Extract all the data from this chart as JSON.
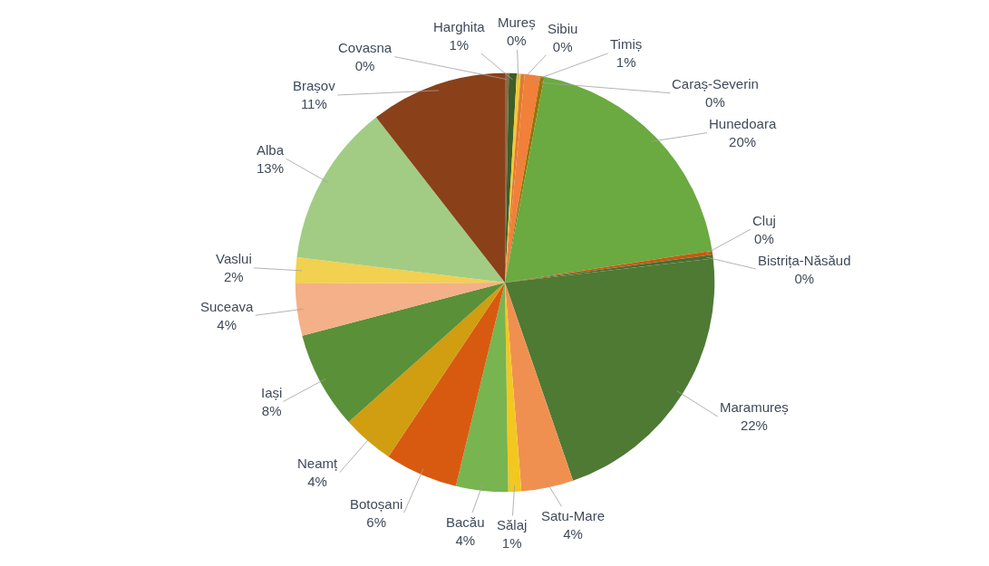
{
  "chart_data": {
    "type": "pie",
    "categories": [
      "Covasna",
      "Harghita",
      "Mureș",
      "Sibiu",
      "Timiș",
      "Caraș-Severin",
      "Hunedoara",
      "Cluj",
      "Bistrița-Năsăud",
      "Maramureș",
      "Satu-Mare",
      "Sălaj",
      "Bacău",
      "Botoșani",
      "Neamț",
      "Iași",
      "Suceava",
      "Vaslui",
      "Alba",
      "Brașov"
    ],
    "values": [
      0.3,
      0.6,
      0.3,
      0.3,
      1.2,
      0.3,
      19.5,
      0.3,
      0.3,
      21.5,
      4,
      1,
      4,
      5.6,
      4,
      7.5,
      4,
      2,
      12.5,
      10.5
    ],
    "value_labels": [
      "0%",
      "1%",
      "0%",
      "0%",
      "1%",
      "0%",
      "20%",
      "0%",
      "0%",
      "22%",
      "4%",
      "1%",
      "4%",
      "6%",
      "4%",
      "8%",
      "4%",
      "2%",
      "13%",
      "11%"
    ],
    "colors": [
      "#8c6a4a",
      "#3e5e28",
      "#f2c830",
      "#e07a30",
      "#f0803a",
      "#997300",
      "#6aaa40",
      "#c55a11",
      "#4a6e30",
      "#4e7a34",
      "#f09050",
      "#f2c820",
      "#78b450",
      "#d85a10",
      "#d09e10",
      "#5a9038",
      "#f4b088",
      "#f2d050",
      "#a2cc84",
      "#8a4018"
    ],
    "legend": false
  }
}
